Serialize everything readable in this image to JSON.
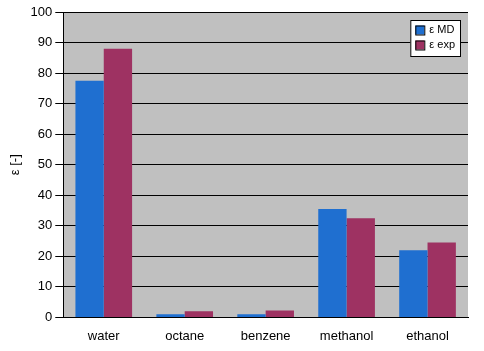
{
  "chart_data": {
    "type": "bar",
    "y_label": "ε [-]",
    "categories": [
      "water",
      "octane",
      "benzene",
      "methanol",
      "ethanol"
    ],
    "series": [
      {
        "name": "ε MD",
        "color": "#1f6fd0",
        "values": [
          77.5,
          1.0,
          1.0,
          35.5,
          22.0
        ]
      },
      {
        "name": "ε exp",
        "color": "#9e3262",
        "values": [
          88.0,
          2.0,
          2.3,
          32.5,
          24.5
        ]
      }
    ],
    "ylim": [
      0,
      100
    ],
    "yticks": [
      0,
      10,
      20,
      30,
      40,
      50,
      60,
      70,
      80,
      90,
      100
    ],
    "grid": true,
    "legend": "top right"
  }
}
